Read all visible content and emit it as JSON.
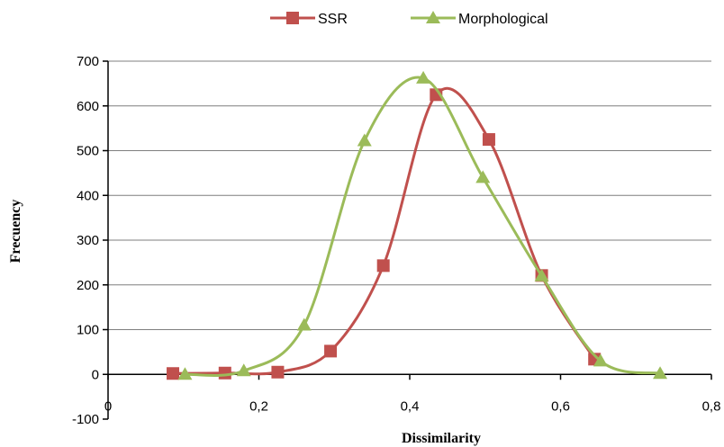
{
  "chart_data": {
    "type": "line",
    "title": "",
    "xlabel": "Dissimilarity",
    "ylabel": "Frecuency",
    "xlim": [
      0,
      0.8
    ],
    "ylim": [
      -100,
      700
    ],
    "x_ticks": [
      "0",
      "0,2",
      "0,4",
      "0,6",
      "0,8"
    ],
    "y_ticks": [
      "-100",
      "0",
      "100",
      "200",
      "300",
      "400",
      "500",
      "600",
      "700"
    ],
    "grid": "horizontal",
    "legend_position": "top",
    "series": [
      {
        "name": "SSR",
        "color": "#c0504d",
        "marker": "square",
        "points": [
          [
            0.086,
            2
          ],
          [
            0.155,
            3
          ],
          [
            0.225,
            5
          ],
          [
            0.295,
            52
          ],
          [
            0.365,
            243
          ],
          [
            0.435,
            625
          ],
          [
            0.505,
            525
          ],
          [
            0.575,
            221
          ],
          [
            0.645,
            34
          ]
        ]
      },
      {
        "name": "Morphological",
        "color": "#9bbb59",
        "marker": "triangle",
        "points": [
          [
            0.102,
            0
          ],
          [
            0.18,
            8
          ],
          [
            0.26,
            110
          ],
          [
            0.34,
            522
          ],
          [
            0.418,
            662
          ],
          [
            0.497,
            440
          ],
          [
            0.575,
            220
          ],
          [
            0.653,
            30
          ],
          [
            0.732,
            2
          ]
        ]
      }
    ]
  }
}
